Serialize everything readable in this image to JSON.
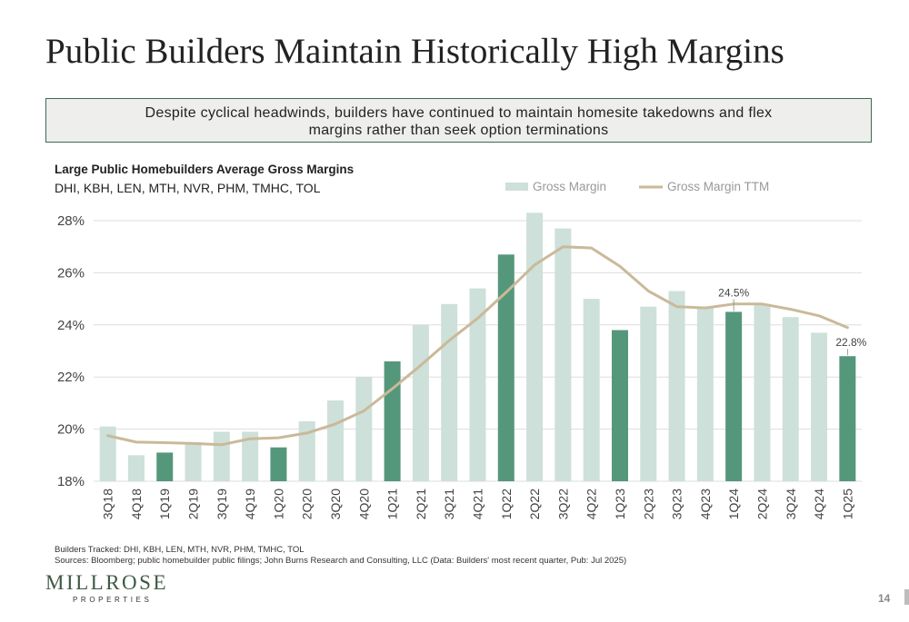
{
  "page": {
    "title": "Public Builders Maintain Historically High Margins",
    "callout_lines": [
      "Despite cyclical headwinds, builders have continued to maintain homesite takedowns and flex",
      "margins rather than seek option terminations"
    ],
    "footnote_builders": "Builders Tracked: DHI, KBH, LEN, MTH, NVR, PHM, TMHC, TOL",
    "footnote_sources": "Sources: Bloomberg; public homebuilder public filings; John Burns Research and Consulting, LLC (Data: Builders' most recent quarter, Pub: Jul 2025)",
    "logo_main": "MILLROSE",
    "logo_sub": "PROPERTIES",
    "page_number": "14"
  },
  "colors": {
    "bar_light": "#cde0d9",
    "bar_dark": "#55977b",
    "line_ttm": "#cab99a",
    "grid": "#dddddd",
    "callout_border": "#3d6b55",
    "logo": "#3e5a45"
  },
  "chart_data": {
    "type": "bar",
    "title": "Large Public Homebuilders Average Gross Margins",
    "subtitle": "DHI, KBH, LEN, MTH, NVR, PHM, TMHC, TOL",
    "categories": [
      "3Q18",
      "4Q18",
      "1Q19",
      "2Q19",
      "3Q19",
      "4Q19",
      "1Q20",
      "2Q20",
      "3Q20",
      "4Q20",
      "1Q21",
      "2Q21",
      "3Q21",
      "4Q21",
      "1Q22",
      "2Q22",
      "3Q22",
      "4Q22",
      "1Q23",
      "2Q23",
      "3Q23",
      "4Q23",
      "1Q24",
      "2Q24",
      "3Q24",
      "4Q24",
      "1Q25"
    ],
    "series": [
      {
        "name": "Gross Margin",
        "type": "bar",
        "values": [
          20.1,
          19.0,
          19.1,
          19.5,
          19.9,
          19.9,
          19.3,
          20.3,
          21.1,
          22.0,
          22.6,
          24.0,
          24.8,
          25.4,
          26.7,
          28.3,
          27.7,
          25.0,
          23.8,
          24.7,
          25.3,
          24.7,
          24.5,
          24.8,
          24.3,
          23.7,
          22.8
        ],
        "highlight": [
          false,
          false,
          true,
          false,
          false,
          false,
          true,
          false,
          false,
          false,
          true,
          false,
          false,
          false,
          true,
          false,
          false,
          false,
          true,
          false,
          false,
          false,
          true,
          false,
          false,
          false,
          true
        ]
      },
      {
        "name": "Gross Margin TTM",
        "type": "line",
        "values": [
          19.75,
          19.5,
          19.48,
          19.45,
          19.4,
          19.63,
          19.67,
          19.85,
          20.2,
          20.7,
          21.55,
          22.45,
          23.4,
          24.25,
          25.25,
          26.3,
          27.0,
          26.95,
          26.25,
          25.3,
          24.7,
          24.65,
          24.8,
          24.8,
          24.6,
          24.35,
          23.9
        ]
      }
    ],
    "data_labels": [
      {
        "category": "1Q24",
        "text": "24.5%"
      },
      {
        "category": "1Q25",
        "text": "22.8%"
      }
    ],
    "ylim": [
      18,
      28
    ],
    "yticks": [
      "18%",
      "20%",
      "22%",
      "24%",
      "26%",
      "28%"
    ],
    "grid": true,
    "legend": "top-right"
  }
}
